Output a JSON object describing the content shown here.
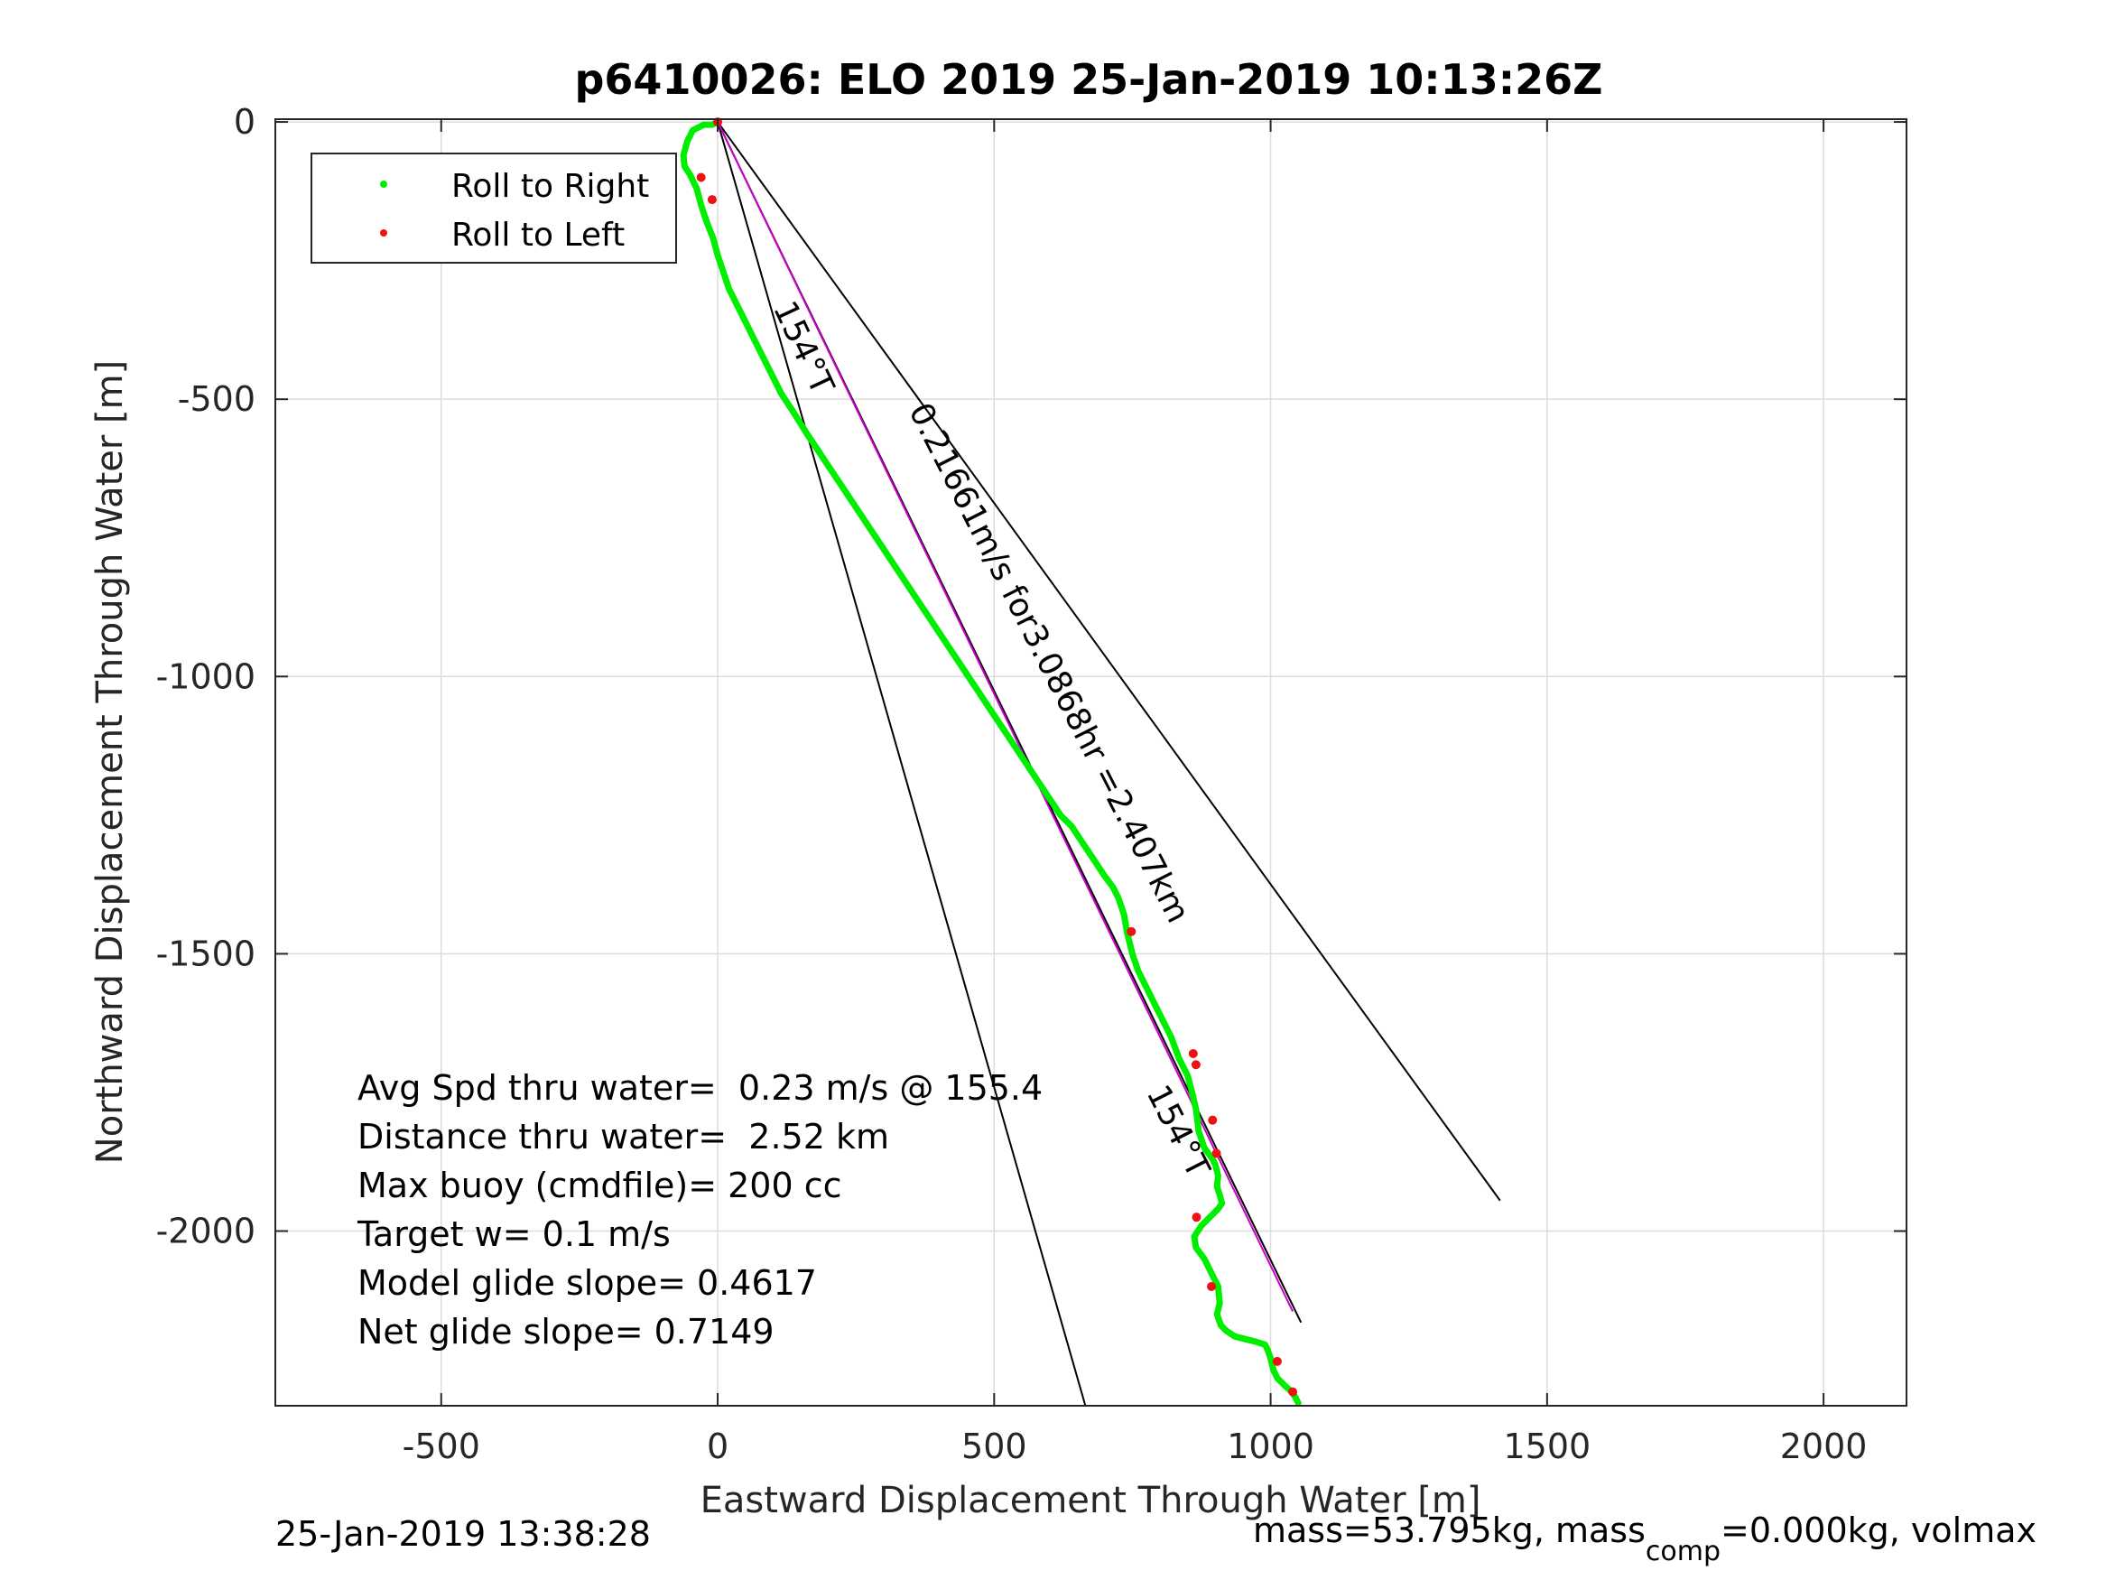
{
  "chart_data": {
    "type": "scatter",
    "title": "p6410026: ELO 2019 25-Jan-2019 10:13:26Z",
    "xlabel": "Eastward Displacement Through Water [m]",
    "ylabel": "Northward Displacement Through Water [m]",
    "xlim": [
      -800,
      2150
    ],
    "ylim": [
      -2315,
      5
    ],
    "xticks": [
      -500,
      0,
      500,
      1000,
      1500,
      2000
    ],
    "yticks": [
      0,
      -500,
      -1000,
      -1500,
      -2000
    ],
    "xtick_labels": [
      "-500",
      "0",
      "500",
      "1000",
      "1500",
      "2000"
    ],
    "ytick_labels": [
      "0",
      "-500",
      "-1000",
      "-1500",
      "-2000"
    ],
    "grid": true,
    "legend": {
      "placement": "top-left",
      "entries": [
        {
          "label": "Roll to Right",
          "color": "#00ee00"
        },
        {
          "label": "Roll to Left",
          "color": "#ee1111"
        }
      ]
    },
    "series": [
      {
        "name": "Roll to Right",
        "color": "#00ee00",
        "x": [
          0,
          -10,
          -25,
          -45,
          -55,
          -62,
          -60,
          -50,
          -38,
          -30,
          -20,
          -8,
          0,
          10,
          20,
          35,
          45,
          55,
          70,
          85,
          100,
          115,
          135,
          160,
          180,
          200,
          220,
          240,
          260,
          280,
          300,
          320,
          340,
          360,
          380,
          400,
          420,
          440,
          460,
          480,
          500,
          520,
          540,
          560,
          580,
          600,
          620,
          640,
          660,
          680,
          700,
          715,
          725,
          735,
          740,
          745,
          750,
          760,
          775,
          790,
          805,
          820,
          835,
          850,
          858,
          865,
          870,
          880,
          895,
          900,
          905,
          903,
          908,
          912,
          905,
          890,
          875,
          862,
          865,
          880,
          895,
          905,
          908,
          903,
          910,
          920,
          935,
          955,
          975,
          990,
          995,
          1000,
          1005,
          1012,
          1025,
          1038,
          1045,
          1050
        ],
        "y": [
          0,
          -5,
          -5,
          -15,
          -35,
          -60,
          -80,
          -95,
          -120,
          -150,
          -180,
          -210,
          -240,
          -270,
          -300,
          -330,
          -350,
          -370,
          -400,
          -430,
          -460,
          -490,
          -520,
          -560,
          -590,
          -620,
          -650,
          -680,
          -710,
          -740,
          -770,
          -800,
          -830,
          -860,
          -890,
          -920,
          -950,
          -980,
          -1010,
          -1040,
          -1070,
          -1100,
          -1130,
          -1160,
          -1190,
          -1220,
          -1250,
          -1270,
          -1300,
          -1330,
          -1360,
          -1380,
          -1400,
          -1430,
          -1460,
          -1480,
          -1500,
          -1530,
          -1560,
          -1590,
          -1620,
          -1650,
          -1690,
          -1720,
          -1750,
          -1780,
          -1820,
          -1850,
          -1870,
          -1880,
          -1900,
          -1920,
          -1935,
          -1950,
          -1960,
          -1975,
          -1990,
          -2010,
          -2030,
          -2050,
          -2080,
          -2100,
          -2130,
          -2150,
          -2170,
          -2180,
          -2190,
          -2195,
          -2200,
          -2205,
          -2215,
          -2230,
          -2250,
          -2265,
          -2278,
          -2290,
          -2300,
          -2310
        ]
      },
      {
        "name": "Roll to Left",
        "color": "#ee1111",
        "x": [
          -30,
          -10,
          0,
          748,
          860,
          865,
          895,
          902,
          866,
          893,
          1012,
          1040
        ],
        "y": [
          -100,
          -140,
          0,
          -1460,
          -1680,
          -1700,
          -1800,
          -1860,
          -1975,
          -2100,
          -2235,
          -2290
        ]
      }
    ],
    "lines": [
      {
        "x": [
          0,
          665
        ],
        "y": [
          0,
          -2315
        ],
        "color": "#000000"
      },
      {
        "x": [
          0,
          1415
        ],
        "y": [
          0,
          -1945
        ],
        "color": "#000000"
      },
      {
        "x": [
          0,
          1055
        ],
        "y": [
          0,
          -2165
        ],
        "color": "#000000"
      },
      {
        "x": [
          0,
          1040
        ],
        "y": [
          0,
          -2145
        ],
        "color": "#cc00cc"
      }
    ],
    "annotations": [
      {
        "text": "154°T",
        "x": 100,
        "y": -335,
        "rotation": 65
      },
      {
        "text": "0.21661m/s for3.0868hr =2.407km",
        "x": 345,
        "y": -520,
        "rotation": 63
      },
      {
        "text": "154°T",
        "x": 775,
        "y": -1750,
        "rotation": 63
      }
    ],
    "stats": [
      "Avg Spd thru water=  0.23 m/s @ 155.4",
      "Distance thru water=  2.52 km",
      "Max buoy (cmdfile)= 200 cc",
      "Target w= 0.1 m/s",
      "Model glide slope= 0.4617",
      "Net glide slope= 0.7149"
    ],
    "footer_left": "25-Jan-2019 13:38:28",
    "footer_right_1": "mass=53.795kg, mass",
    "footer_right_sub": "comp",
    "footer_right_2": "=0.000kg, volmax"
  }
}
